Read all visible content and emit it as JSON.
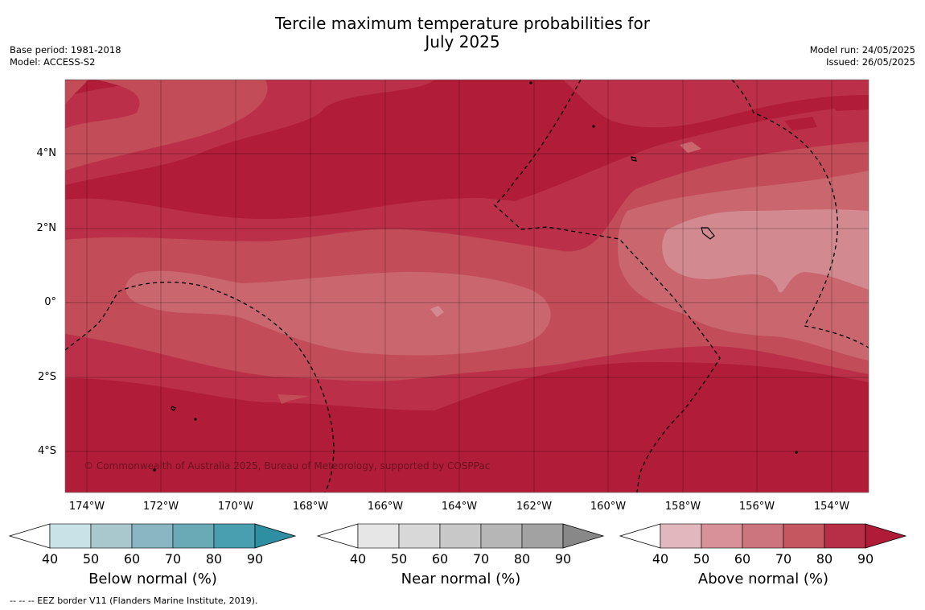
{
  "title_line1": "Tercile maximum temperature probabilities for",
  "title_line2": "July 2025",
  "meta_left": [
    "Base period: 1981-2018",
    "Model: ACCESS-S2"
  ],
  "meta_right": [
    "Model run: 24/05/2025",
    "Issued: 26/05/2025"
  ],
  "copyright": "© Commonwealth of Australia 2025, Bureau of Meteorology, supported by COSPPac",
  "footer": "--  --  -- EEZ border V11 (Flanders Marine Institute, 2019).",
  "lat_labels": [
    "4°N",
    "2°N",
    "0°",
    "2°S",
    "4°S"
  ],
  "lon_labels": [
    "174°W",
    "172°W",
    "170°W",
    "168°W",
    "166°W",
    "164°W",
    "162°W",
    "160°W",
    "158°W",
    "156°W",
    "154°W"
  ],
  "colorbars": [
    {
      "title": "Below normal (%)",
      "ticks": [
        "40",
        "50",
        "60",
        "70",
        "80",
        "90"
      ],
      "colors": [
        "#c9e2e8",
        "#a8c8cd",
        "#8ab6c3",
        "#6aaab7",
        "#499fb0",
        "#2e8fa3"
      ]
    },
    {
      "title": "Near normal (%)",
      "ticks": [
        "40",
        "50",
        "60",
        "70",
        "80",
        "90"
      ],
      "colors": [
        "#e6e6e6",
        "#d8d8d8",
        "#c8c8c8",
        "#b6b6b6",
        "#a2a2a2",
        "#888888"
      ]
    },
    {
      "title": "Above normal (%)",
      "ticks": [
        "40",
        "50",
        "60",
        "70",
        "80",
        "90"
      ],
      "colors": [
        "#e2b7bd",
        "#d89199",
        "#cd757e",
        "#c4575f",
        "#b72f46",
        "#b01c38"
      ]
    }
  ],
  "map_colors": {
    "c80": "#b11c38",
    "c70": "#bb3048",
    "c60": "#c24c57",
    "c50": "#c9666e",
    "c40": "#d28a90"
  }
}
